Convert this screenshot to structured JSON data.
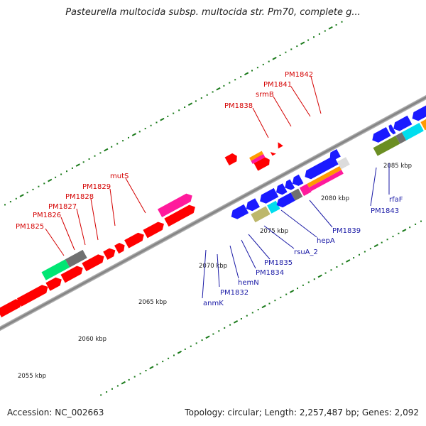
{
  "title": "Pasteurella multocida subsp. multocida str. Pm70, complete g...",
  "accession": "Accession: NC_002663",
  "summary": "Topology: circular; Length: 2,257,487 bp; Genes: 2,092",
  "scale_labels": [
    "2055 kbp",
    "2060 kbp",
    "2065 kbp",
    "2070 kbp",
    "2075 kbp",
    "2080 kbp",
    "2085 kbp"
  ],
  "gene_labels_top": [
    "PM1825",
    "PM1826",
    "PM1827",
    "PM1828",
    "PM1829",
    "mutS",
    "PM1838",
    "srmB",
    "PM1841",
    "PM1842"
  ],
  "gene_labels_bottom": [
    "anmK",
    "PM1832",
    "hemN",
    "PM1834",
    "PM1835",
    "rsuA_2",
    "hepA",
    "PM1839",
    "PM1843",
    "rfaF"
  ],
  "colors": {
    "blue": "#1a1aff",
    "red": "#ff0000",
    "pink": "#ff1a9c",
    "green": "#00e673",
    "olive": "#6b8e23",
    "cyan": "#00ddee",
    "orange": "#ff9a00",
    "khaki": "#bdb76b",
    "gray": "#707070",
    "label_red": "#d40000",
    "label_blue": "#1a1aa6"
  }
}
